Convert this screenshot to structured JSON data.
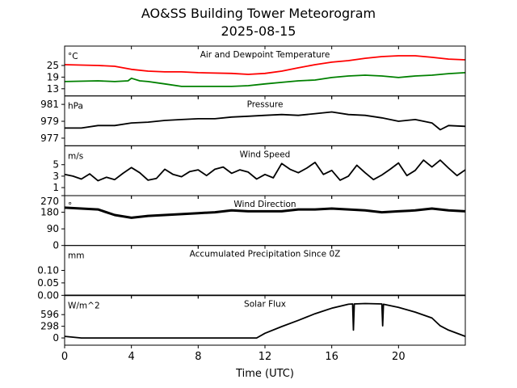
{
  "title": "AO&SS Building Tower Meteorogram",
  "subtitle": "2025-08-15",
  "xlabel": "Time (UTC)",
  "x_ticks": [
    0,
    4,
    8,
    12,
    16,
    20
  ],
  "xlim": [
    0,
    24
  ],
  "chart_data": [
    {
      "type": "line",
      "title": "Air and Dewpoint Temperature",
      "unit_label": "°C",
      "yticks": [
        13,
        19,
        25
      ],
      "ylim": [
        9.3,
        35
      ],
      "series": [
        {
          "color": "#ff0000",
          "x": [
            0,
            2,
            3,
            4,
            5,
            6,
            7,
            8,
            10,
            11,
            12,
            13,
            14,
            15,
            16,
            17,
            18,
            19,
            20,
            21,
            22,
            23,
            24
          ],
          "y": [
            25.4,
            25,
            24.6,
            23,
            22.1,
            21.7,
            21.7,
            21.3,
            20.9,
            20.4,
            20.9,
            22.1,
            23.8,
            25.4,
            26.7,
            27.5,
            28.7,
            29.6,
            30,
            30,
            29.2,
            28.3,
            27.9
          ]
        },
        {
          "color": "#008000",
          "x": [
            0,
            2,
            3,
            3.8,
            4,
            4.5,
            5,
            6,
            7,
            8,
            10,
            11,
            12,
            13,
            14,
            15,
            16,
            17,
            18,
            19,
            20,
            21,
            22,
            23,
            24
          ],
          "y": [
            16.7,
            17.1,
            16.7,
            17.1,
            18.4,
            17.1,
            16.7,
            15.5,
            14.2,
            14.2,
            14.2,
            14.6,
            15.5,
            16.3,
            17.1,
            17.5,
            18.8,
            19.6,
            20,
            19.6,
            18.8,
            19.6,
            20,
            20.8,
            21.3
          ]
        }
      ]
    },
    {
      "type": "line",
      "title": "Pressure",
      "unit_label": "hPa",
      "yticks": [
        977,
        979,
        981
      ],
      "ylim": [
        976.1,
        982
      ],
      "series": [
        {
          "color": "#000000",
          "x": [
            0,
            1,
            2,
            3,
            4,
            5,
            6,
            7,
            8,
            9,
            10,
            11,
            12,
            13,
            14,
            15,
            16,
            17,
            18,
            19,
            20,
            21,
            22,
            22.5,
            23,
            24
          ],
          "y": [
            978.2,
            978.2,
            978.5,
            978.5,
            978.8,
            978.9,
            979.1,
            979.2,
            979.3,
            979.3,
            979.5,
            979.6,
            979.7,
            979.8,
            979.7,
            979.9,
            980.1,
            979.8,
            979.7,
            979.4,
            979,
            979.2,
            978.8,
            978,
            978.5,
            978.4
          ]
        }
      ]
    },
    {
      "type": "line",
      "title": "Wind Speed",
      "unit_label": "m/s",
      "yticks": [
        1,
        3,
        5
      ],
      "ylim": [
        -0.4,
        8.3
      ],
      "series": [
        {
          "color": "#000000",
          "x_step": 0.5,
          "y": [
            3.3,
            3,
            2.5,
            3.4,
            2.2,
            2.8,
            2.4,
            3.5,
            4.5,
            3.6,
            2.3,
            2.6,
            4.2,
            3.3,
            2.9,
            3.8,
            4.1,
            3.1,
            4.2,
            4.6,
            3.5,
            4.1,
            3.7,
            2.5,
            3.3,
            2.7,
            5.2,
            4.2,
            3.6,
            4.4,
            5.4,
            3.3,
            4,
            2.3,
            3,
            4.9,
            3.6,
            2.4,
            3.2,
            4.2,
            5.3,
            3.1,
            4,
            5.8,
            4.6,
            5.8,
            4.4,
            3.1,
            4.1
          ]
        }
      ]
    },
    {
      "type": "line",
      "title": "Wind Direction",
      "unit_label": "°",
      "yticks": [
        0,
        90,
        180,
        270
      ],
      "ylim": [
        0,
        270
      ],
      "series": [
        {
          "color": "#000000",
          "x_step": 1,
          "y": [
            205,
            200,
            195,
            165,
            150,
            160,
            165,
            170,
            175,
            180,
            190,
            185,
            185,
            185,
            195,
            195,
            200,
            195,
            190,
            180,
            185,
            190,
            200,
            190,
            185
          ]
        }
      ]
    },
    {
      "type": "line",
      "title": "Accumulated Precipitation Since 0Z",
      "unit_label": "mm",
      "yticks": [
        0.0,
        0.05,
        0.1
      ],
      "ytick_labels": [
        "0.00",
        "0.05",
        "0.10"
      ],
      "ylim": [
        0,
        0.2
      ],
      "series": [
        {
          "color": "#000000",
          "x": [
            0,
            24
          ],
          "y": [
            0,
            0
          ]
        }
      ]
    },
    {
      "type": "line",
      "title": "Solar Flux",
      "unit_label": "W/m^2",
      "yticks": [
        0,
        298,
        596
      ],
      "ylim": [
        -185,
        1089
      ],
      "series": [
        {
          "color": "#000000",
          "x": [
            0,
            1,
            11.5,
            12,
            13,
            14,
            15,
            16,
            17,
            17.25,
            17.3,
            17.35,
            18,
            19,
            19.05,
            19.1,
            20,
            21,
            22,
            22.5,
            23,
            24
          ],
          "y": [
            40,
            0,
            0,
            120,
            290,
            450,
            620,
            760,
            860,
            870,
            200,
            870,
            880,
            870,
            310,
            860,
            780,
            660,
            510,
            310,
            200,
            40
          ]
        }
      ]
    }
  ]
}
